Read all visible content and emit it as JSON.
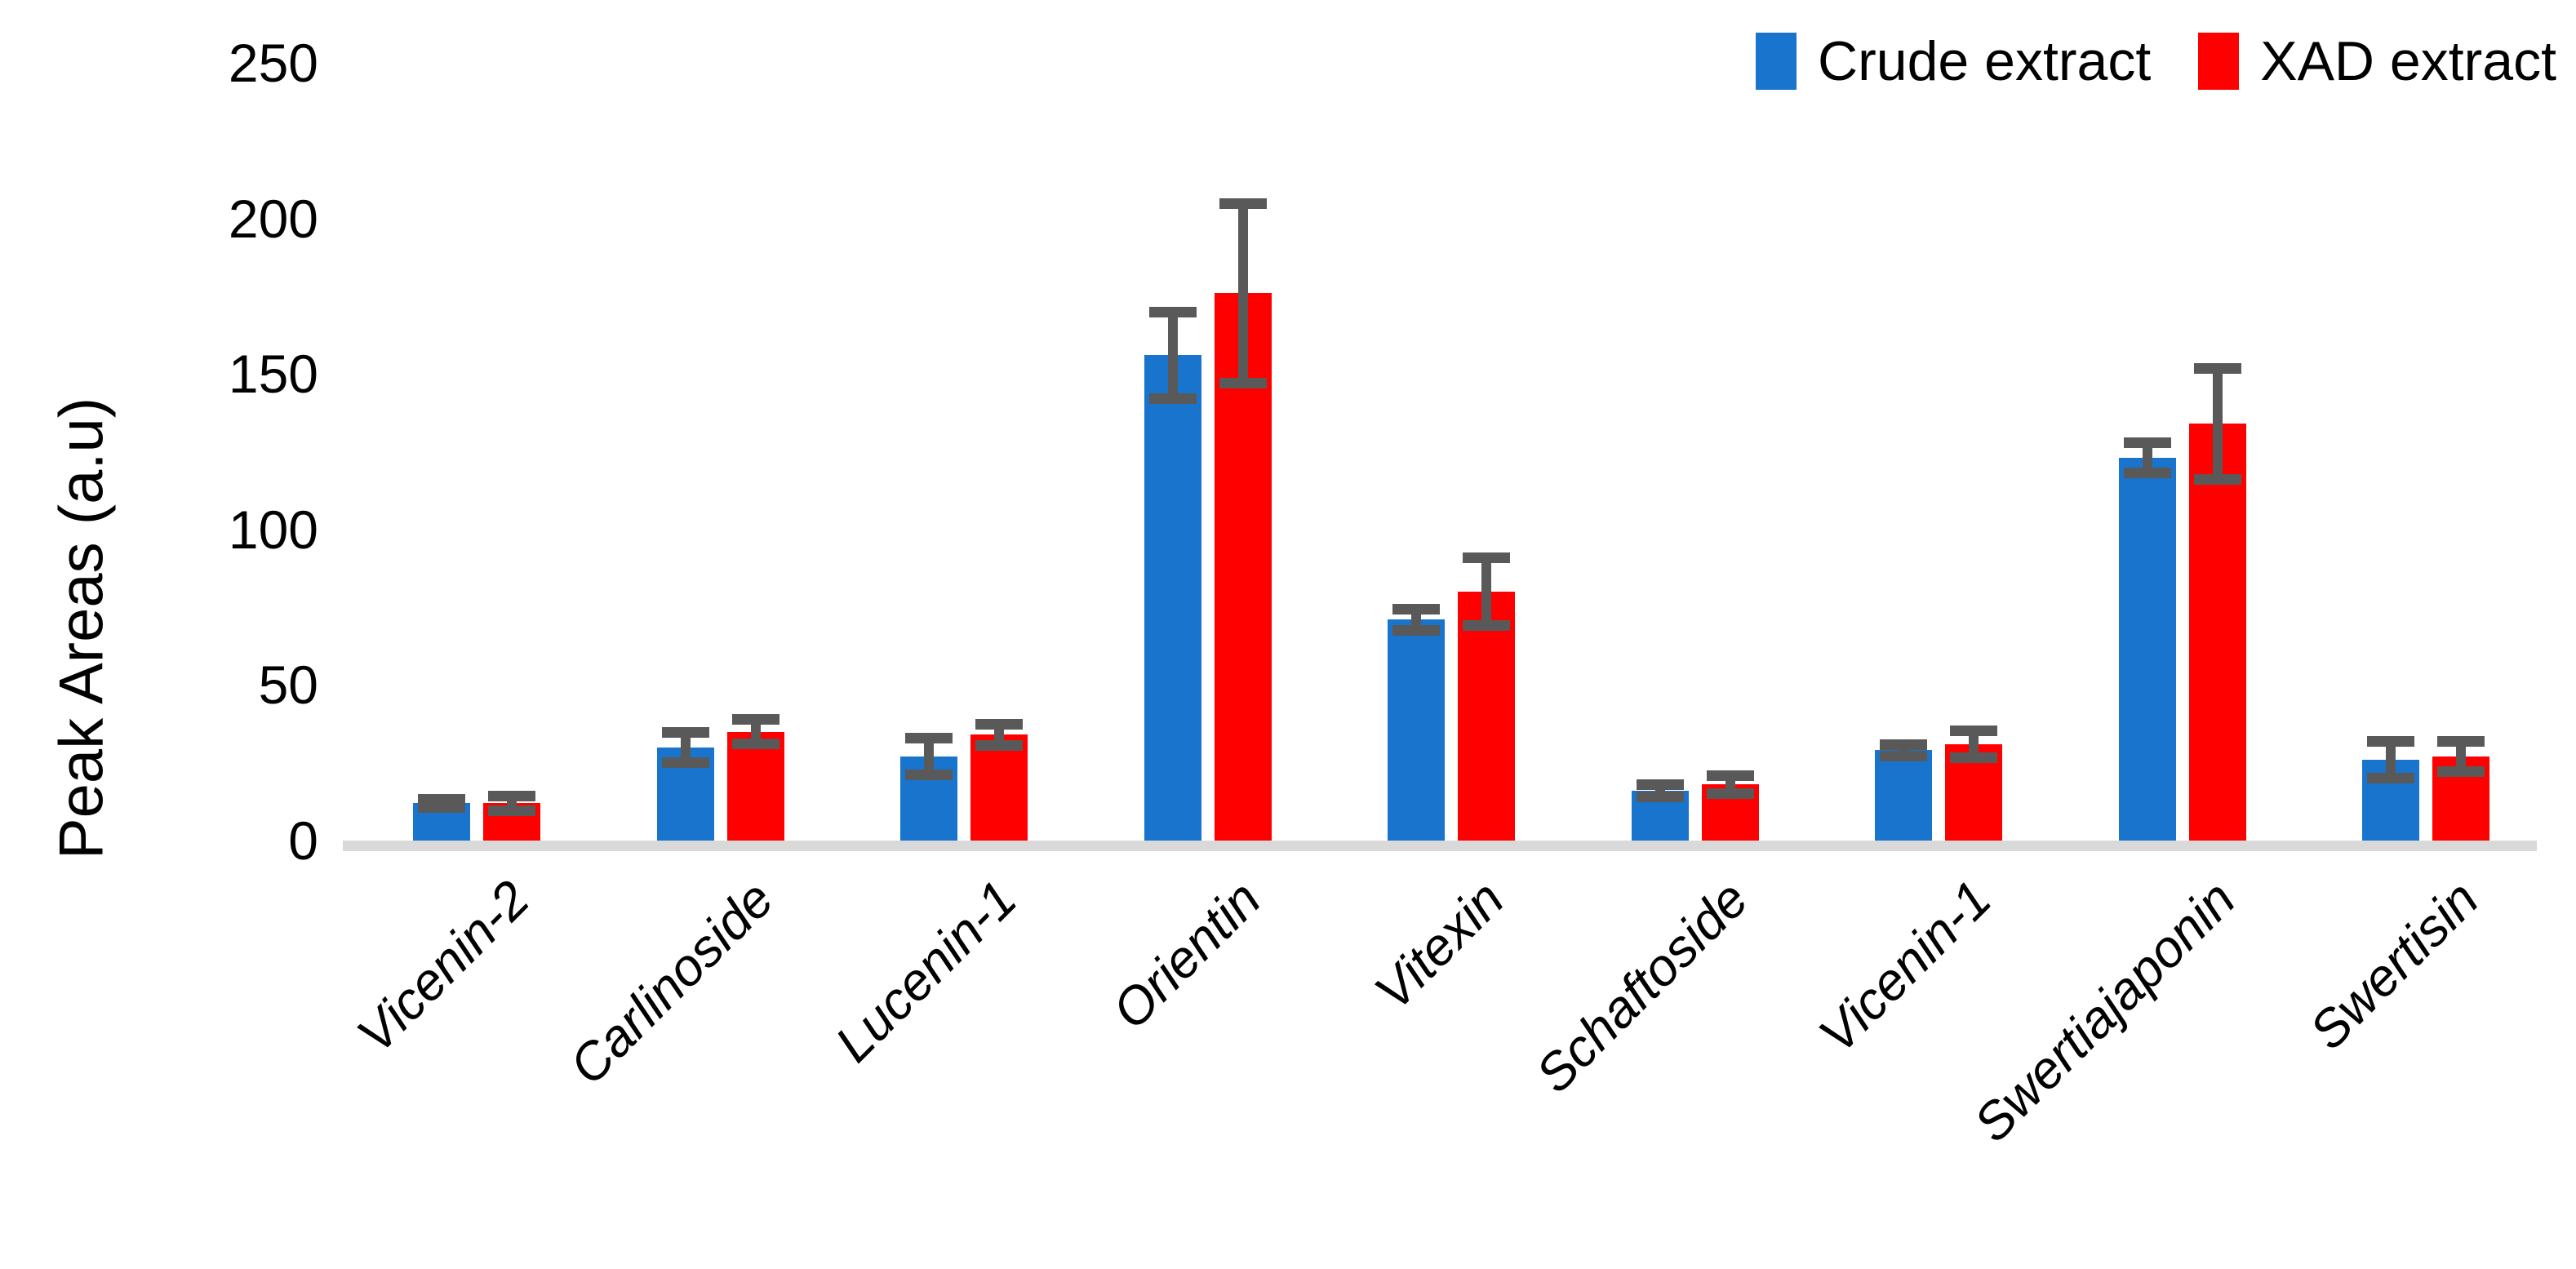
{
  "chart_data": {
    "type": "bar",
    "title": "",
    "xlabel": "",
    "ylabel": "Peak Areas (a.u)",
    "ylim": [
      0,
      250
    ],
    "yticks": [
      0,
      50,
      100,
      150,
      200,
      250
    ],
    "grid": false,
    "legend_position": "top-right",
    "error_bars": true,
    "categories": [
      "Vicenin-2",
      "Carlinoside",
      "Lucenin-1",
      "Orientin",
      "Vitexin",
      "Schaftoside",
      "Vicenin-1",
      "Swertiajaponin",
      "Swertisin"
    ],
    "series": [
      {
        "name": "Crude extract",
        "color": "#1874CD",
        "values": [
          12,
          30,
          27,
          156,
          71,
          16,
          29,
          123,
          26
        ],
        "errors": [
          1.5,
          5,
          6,
          14,
          3.5,
          2,
          2,
          5,
          6
        ]
      },
      {
        "name": "XAD extract",
        "color": "#FF0000",
        "values": [
          12,
          35,
          34,
          176,
          80,
          18,
          31,
          134,
          27
        ],
        "errors": [
          2.5,
          4,
          3.5,
          29,
          11,
          3,
          4.5,
          18,
          5
        ]
      }
    ]
  },
  "colors": {
    "error_bar": "#595959",
    "axis_line": "#D9D9D9",
    "text": "#000000"
  }
}
